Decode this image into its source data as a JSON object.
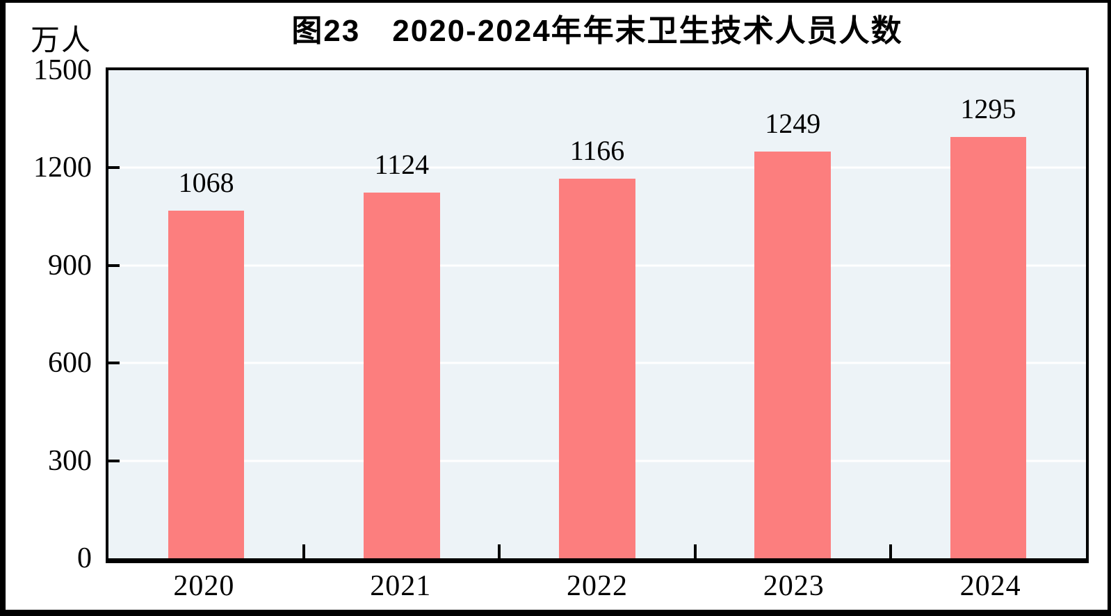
{
  "page": {
    "title": "图23　2020-2024年年末卫生技术人员人数",
    "unit_label": "万人"
  },
  "chart_data": {
    "type": "bar",
    "title": "图23　2020-2024年年末卫生技术人员人数",
    "categories": [
      "2020",
      "2021",
      "2022",
      "2023",
      "2024"
    ],
    "values": [
      1068,
      1124,
      1166,
      1249,
      1295
    ],
    "xlabel": "",
    "ylabel": "万人",
    "ylim": [
      0,
      1500
    ],
    "yticks": [
      0,
      300,
      600,
      900,
      1200,
      1500
    ],
    "grid": true,
    "gridline_color": "#FFFFFF",
    "plot_bg": "#EDF3F7",
    "bar_color": "#FC7E7E",
    "text_color": "#000000",
    "legend_position": "none",
    "value_labels_shown": true
  }
}
